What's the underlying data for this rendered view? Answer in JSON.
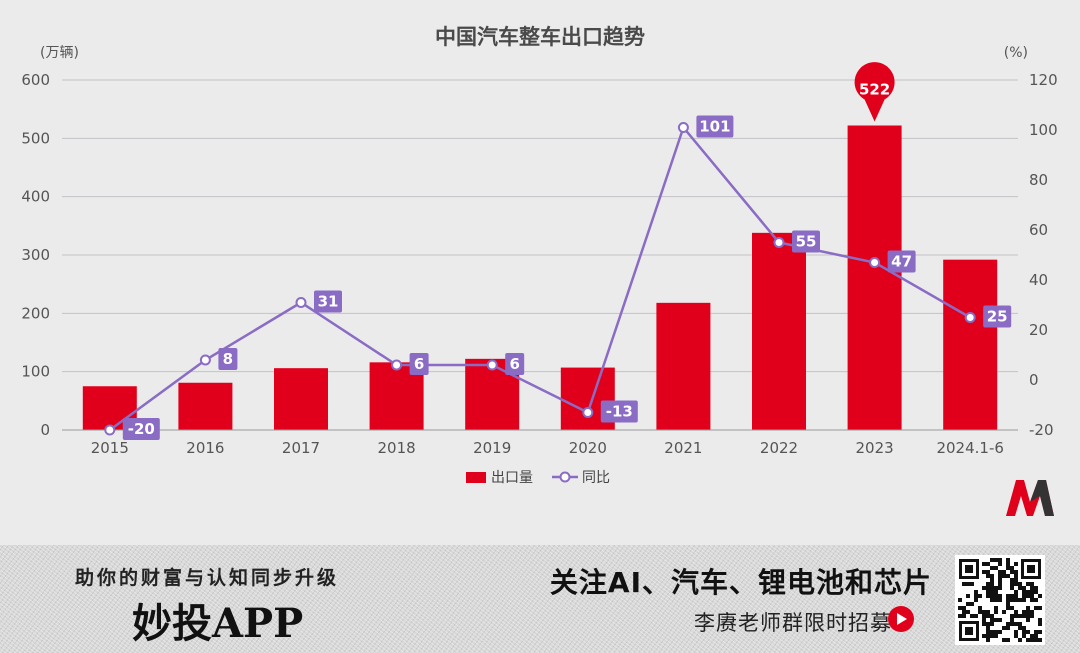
{
  "chart_data": {
    "type": "bar",
    "title": "中国汽车整车出口趋势",
    "categories": [
      "2015",
      "2016",
      "2017",
      "2018",
      "2019",
      "2020",
      "2021",
      "2022",
      "2023",
      "2024.1-6"
    ],
    "series": [
      {
        "name": "出口量",
        "type": "bar",
        "axis": "left",
        "color": "#e1001b",
        "values": [
          75,
          81,
          106,
          116,
          122,
          107,
          218,
          338,
          522,
          292
        ]
      },
      {
        "name": "同比",
        "type": "line",
        "axis": "right",
        "color": "#8a6cc4",
        "values": [
          -20,
          8,
          31,
          6,
          6,
          -13,
          101,
          55,
          47,
          25
        ]
      }
    ],
    "y_left": {
      "unit": "(万辆)",
      "min": 0,
      "max": 600,
      "ticks": [
        0,
        100,
        200,
        300,
        400,
        500,
        600
      ]
    },
    "y_right": {
      "unit": "(%)",
      "min": -20,
      "max": 120,
      "ticks": [
        -20,
        0,
        20,
        40,
        60,
        80,
        100,
        120
      ]
    },
    "highlight": {
      "category": "2023",
      "label": "522"
    },
    "grid": true,
    "legend_position": "bottom-center"
  },
  "banner": {
    "slogan": "助你的财富与认知同步升级",
    "app_name": "妙投APP",
    "follow_text": "关注AI、汽车、锂电池和芯片",
    "recruit_text": "李赓老师群限时招募"
  },
  "colors": {
    "bar": "#e1001b",
    "line": "#8a6cc4",
    "background": "#ebebeb"
  }
}
